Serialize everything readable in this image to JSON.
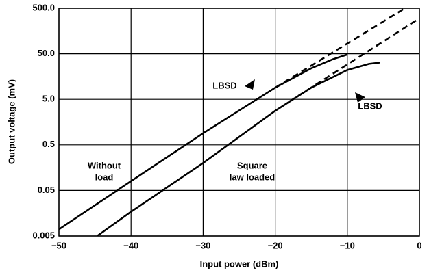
{
  "chart_data": {
    "type": "line",
    "xlabel": "Input power (dBm)",
    "ylabel": "Output voltage (mV)",
    "xlim": [
      -50,
      0
    ],
    "xticks": [
      {
        "value": -50,
        "label": "−50"
      },
      {
        "value": -40,
        "label": "−40"
      },
      {
        "value": -30,
        "label": "−30"
      },
      {
        "value": -20,
        "label": "−20"
      },
      {
        "value": -10,
        "label": "−10"
      },
      0
    ],
    "ylim": [
      0.005,
      500
    ],
    "yscale": "log",
    "yticks": [
      0.005,
      0.05,
      0.5,
      {
        "value": 5,
        "label": "5.0"
      },
      {
        "value": 50,
        "label": "50.0"
      },
      {
        "value": 500,
        "label": "500.0"
      }
    ],
    "grid": true,
    "series": [
      {
        "color": "#000000",
        "dashed": false,
        "x": [
          -50,
          -40,
          -30,
          -20,
          -15,
          -12,
          -10
        ],
        "values": [
          0.007,
          0.08,
          0.9,
          9,
          24,
          38,
          48
        ]
      },
      {
        "color": "#000000",
        "dashed": true,
        "x": [
          -20,
          -2
        ],
        "values": [
          9,
          500
        ]
      },
      {
        "color": "#000000",
        "dashed": false,
        "x": [
          -44.7,
          -40,
          -30,
          -20,
          -15,
          -10,
          -7,
          -5.5
        ],
        "values": [
          0.005,
          0.017,
          0.2,
          2.8,
          9,
          22,
          30,
          32
        ]
      },
      {
        "color": "#000000",
        "dashed": true,
        "x": [
          -18,
          0
        ],
        "values": [
          4.5,
          300
        ]
      }
    ],
    "annotations": [
      {
        "lines": [
          "LBSD"
        ]
      },
      {
        "lines": [
          "LBSD"
        ]
      },
      {
        "lines": [
          "Without",
          "load"
        ]
      },
      {
        "lines": [
          "Square",
          "law  loaded"
        ]
      }
    ]
  }
}
